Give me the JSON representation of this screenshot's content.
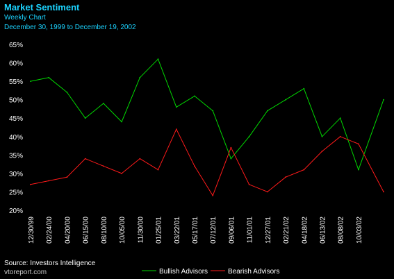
{
  "header": {
    "title": "Market Sentiment",
    "subtitle": "Weekly Chart",
    "date_range": "December 30, 1999 to December 19, 2002"
  },
  "footer": {
    "source": "Source: Investors Intelligence",
    "site": "vtoreport.com"
  },
  "colors": {
    "background": "#000000",
    "header_text": "#1bd3ff",
    "axis_text": "#ffffff",
    "grid": "#ffffff",
    "bullish": "#00d800",
    "bearish": "#ff1a1a"
  },
  "chart_data": {
    "type": "line",
    "x_type": "weekly dates",
    "x_range": [
      "12/30/99",
      "12/19/02"
    ],
    "x": [
      "12/30/99",
      "02/24/00",
      "04/20/00",
      "06/15/00",
      "08/10/00",
      "10/05/00",
      "11/30/00",
      "01/25/01",
      "03/22/01",
      "05/17/01",
      "07/12/01",
      "09/06/01",
      "11/01/01",
      "12/27/01",
      "02/21/02",
      "04/18/02",
      "06/13/02",
      "08/08/02",
      "10/03/02",
      "12/19/02"
    ],
    "x_tick_labels": [
      "12/30/99",
      "02/24/00",
      "04/20/00",
      "06/15/00",
      "08/10/00",
      "10/05/00",
      "11/30/00",
      "01/25/01",
      "03/22/01",
      "05/17/01",
      "07/12/01",
      "09/06/01",
      "11/01/01",
      "12/27/01",
      "02/21/02",
      "04/18/02",
      "06/13/02",
      "08/08/02",
      "10/03/02"
    ],
    "y_ticks": [
      "65%",
      "60%",
      "55%",
      "50%",
      "45%",
      "40%",
      "35%",
      "30%",
      "25%",
      "20%"
    ],
    "ylim": [
      20,
      65
    ],
    "y_unit": "%",
    "grid": false,
    "legend_position": "bottom",
    "series": [
      {
        "name": "Bullish Advisors",
        "color": "#00d800",
        "values": [
          55,
          56,
          52,
          45,
          49,
          44,
          56,
          61,
          48,
          51,
          47,
          34,
          40,
          47,
          50,
          53,
          40,
          45,
          31,
          50
        ]
      },
      {
        "name": "Bearish Advisors",
        "color": "#ff1a1a",
        "values": [
          27,
          28,
          29,
          34,
          32,
          30,
          34,
          31,
          42,
          32,
          24,
          37,
          27,
          25,
          29,
          31,
          36,
          40,
          38,
          25
        ]
      }
    ]
  }
}
